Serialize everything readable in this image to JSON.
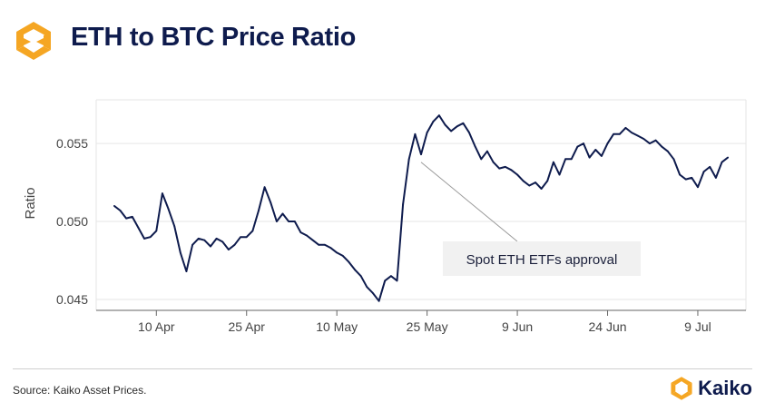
{
  "header": {
    "title": "ETH to BTC Price Ratio"
  },
  "footer": {
    "source": "Source: Kaiko Asset Prices.",
    "brand": "Kaiko"
  },
  "colors": {
    "line": "#0e1b4d",
    "grid": "#e6e6e6",
    "brand_orange": "#f5a623"
  },
  "chart_data": {
    "type": "line",
    "title": "ETH to BTC Price Ratio",
    "xlabel": "",
    "ylabel": "Ratio",
    "xlim": [
      "2024-03-31",
      "2024-07-17"
    ],
    "ylim": [
      0.0443,
      0.0578
    ],
    "grid": true,
    "x_ticks": [
      {
        "date": "2024-04-10",
        "label": "10 Apr"
      },
      {
        "date": "2024-04-25",
        "label": "25 Apr"
      },
      {
        "date": "2024-05-10",
        "label": "10 May"
      },
      {
        "date": "2024-05-25",
        "label": "25 May"
      },
      {
        "date": "2024-06-09",
        "label": "9 Jun"
      },
      {
        "date": "2024-06-24",
        "label": "24 Jun"
      },
      {
        "date": "2024-07-09",
        "label": "9 Jul"
      }
    ],
    "y_ticks": [
      {
        "value": 0.045,
        "label": "0.045"
      },
      {
        "value": 0.05,
        "label": "0.050"
      },
      {
        "value": 0.055,
        "label": "0.055"
      }
    ],
    "series": [
      {
        "x": [
          "2024-04-03",
          "2024-04-04",
          "2024-04-05",
          "2024-04-06",
          "2024-04-07",
          "2024-04-08",
          "2024-04-09",
          "2024-04-10",
          "2024-04-11",
          "2024-04-12",
          "2024-04-13",
          "2024-04-14",
          "2024-04-15",
          "2024-04-16",
          "2024-04-17",
          "2024-04-18",
          "2024-04-19",
          "2024-04-20",
          "2024-04-21",
          "2024-04-22",
          "2024-04-23",
          "2024-04-24",
          "2024-04-25",
          "2024-04-26",
          "2024-04-27",
          "2024-04-28",
          "2024-04-29",
          "2024-04-30",
          "2024-05-01",
          "2024-05-02",
          "2024-05-03",
          "2024-05-04",
          "2024-05-05",
          "2024-05-06",
          "2024-05-07",
          "2024-05-08",
          "2024-05-09",
          "2024-05-10",
          "2024-05-11",
          "2024-05-12",
          "2024-05-13",
          "2024-05-14",
          "2024-05-15",
          "2024-05-16",
          "2024-05-17",
          "2024-05-18",
          "2024-05-19",
          "2024-05-20",
          "2024-05-21",
          "2024-05-22",
          "2024-05-23",
          "2024-05-24",
          "2024-05-25",
          "2024-05-26",
          "2024-05-27",
          "2024-05-28",
          "2024-05-29",
          "2024-05-30",
          "2024-05-31",
          "2024-06-01",
          "2024-06-02",
          "2024-06-03",
          "2024-06-04",
          "2024-06-05",
          "2024-06-06",
          "2024-06-07",
          "2024-06-08",
          "2024-06-09",
          "2024-06-10",
          "2024-06-11",
          "2024-06-12",
          "2024-06-13",
          "2024-06-14",
          "2024-06-15",
          "2024-06-16",
          "2024-06-17",
          "2024-06-18",
          "2024-06-19",
          "2024-06-20",
          "2024-06-21",
          "2024-06-22",
          "2024-06-23",
          "2024-06-24",
          "2024-06-25",
          "2024-06-26",
          "2024-06-27",
          "2024-06-28",
          "2024-06-29",
          "2024-06-30",
          "2024-07-01",
          "2024-07-02",
          "2024-07-03",
          "2024-07-04",
          "2024-07-05",
          "2024-07-06",
          "2024-07-07",
          "2024-07-08",
          "2024-07-09",
          "2024-07-10",
          "2024-07-11",
          "2024-07-12",
          "2024-07-13",
          "2024-07-14"
        ],
        "values": [
          0.051,
          0.0507,
          0.0502,
          0.0503,
          0.0496,
          0.0489,
          0.049,
          0.0494,
          0.0518,
          0.0508,
          0.0497,
          0.048,
          0.0468,
          0.0485,
          0.0489,
          0.0488,
          0.0484,
          0.0489,
          0.0487,
          0.0482,
          0.0485,
          0.049,
          0.049,
          0.0494,
          0.0507,
          0.0522,
          0.0512,
          0.05,
          0.0505,
          0.05,
          0.05,
          0.0493,
          0.0491,
          0.0488,
          0.0485,
          0.0485,
          0.0483,
          0.048,
          0.0478,
          0.0474,
          0.0469,
          0.0465,
          0.0458,
          0.0454,
          0.0449,
          0.0462,
          0.0465,
          0.0462,
          0.0511,
          0.054,
          0.0556,
          0.0543,
          0.0557,
          0.0564,
          0.0568,
          0.0562,
          0.0558,
          0.0561,
          0.0563,
          0.0557,
          0.0548,
          0.054,
          0.0545,
          0.0538,
          0.0534,
          0.0535,
          0.0533,
          0.053,
          0.0526,
          0.0523,
          0.0525,
          0.0521,
          0.0526,
          0.0538,
          0.053,
          0.054,
          0.054,
          0.0548,
          0.055,
          0.0541,
          0.0546,
          0.0542,
          0.055,
          0.0556,
          0.0556,
          0.056,
          0.0557,
          0.0555,
          0.0553,
          0.055,
          0.0552,
          0.0548,
          0.0545,
          0.054,
          0.053,
          0.0527,
          0.0528,
          0.0522,
          0.0532,
          0.0535,
          0.0528,
          0.0538,
          0.0541
        ]
      }
    ],
    "annotations": [
      {
        "text": "Spot ETH ETFs approval",
        "x": "2024-05-24",
        "y": 0.0538
      }
    ]
  }
}
